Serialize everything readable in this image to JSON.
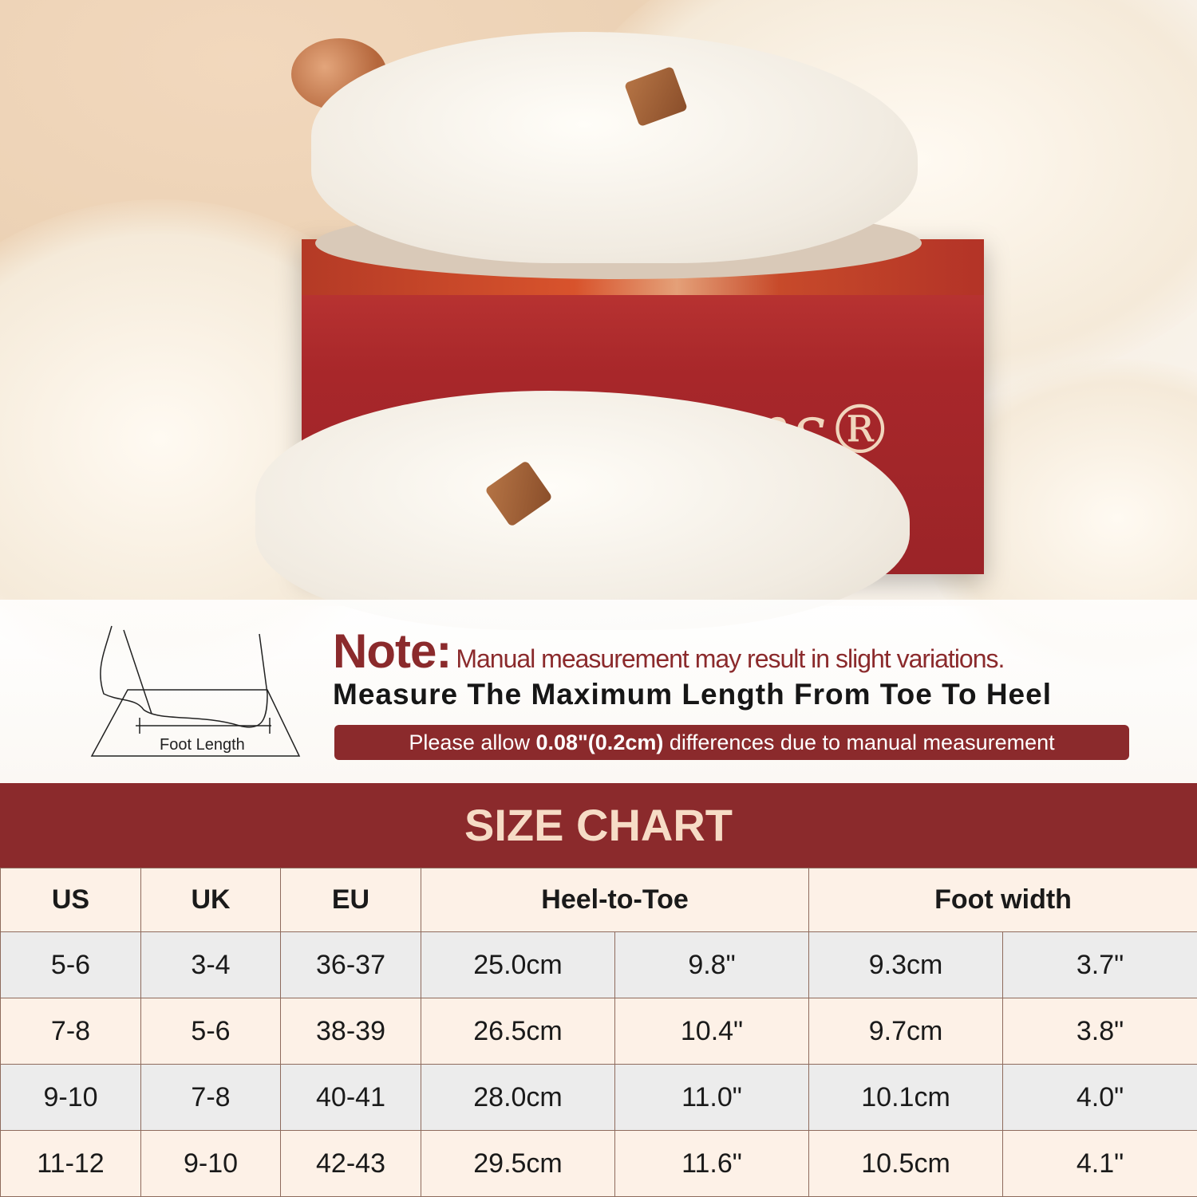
{
  "photo": {
    "brand_logo_text": "EverFoams",
    "colors": {
      "box": "#a8272a",
      "slipper": "#f6f1e8"
    }
  },
  "note": {
    "label": "Note:",
    "text": "Manual measurement may result in slight variations.",
    "instruction": "Measure The Maximum Length From Toe To Heel",
    "allow_prefix": "Please allow ",
    "allow_bold": "0.08\"(0.2cm)",
    "allow_suffix": " differences due to manual measurement",
    "foot_label": "Foot Length"
  },
  "size_chart": {
    "title": "SIZE CHART",
    "headers": [
      "US",
      "UK",
      "EU",
      "Heel-to-Toe",
      "Foot width"
    ],
    "rows": [
      [
        "5-6",
        "3-4",
        "36-37",
        "25.0cm",
        "9.8\"",
        "9.3cm",
        "3.7\""
      ],
      [
        "7-8",
        "5-6",
        "38-39",
        "26.5cm",
        "10.4\"",
        "9.7cm",
        "3.8\""
      ],
      [
        "9-10",
        "7-8",
        "40-41",
        "28.0cm",
        "11.0\"",
        "10.1cm",
        "4.0\""
      ],
      [
        "11-12",
        "9-10",
        "42-43",
        "29.5cm",
        "11.6\"",
        "10.5cm",
        "4.1\""
      ]
    ]
  },
  "colors": {
    "accent": "#8b2a2c",
    "title_text": "#f6dcc6",
    "row_gray": "#ececec",
    "row_cream": "#fdf1e7"
  }
}
